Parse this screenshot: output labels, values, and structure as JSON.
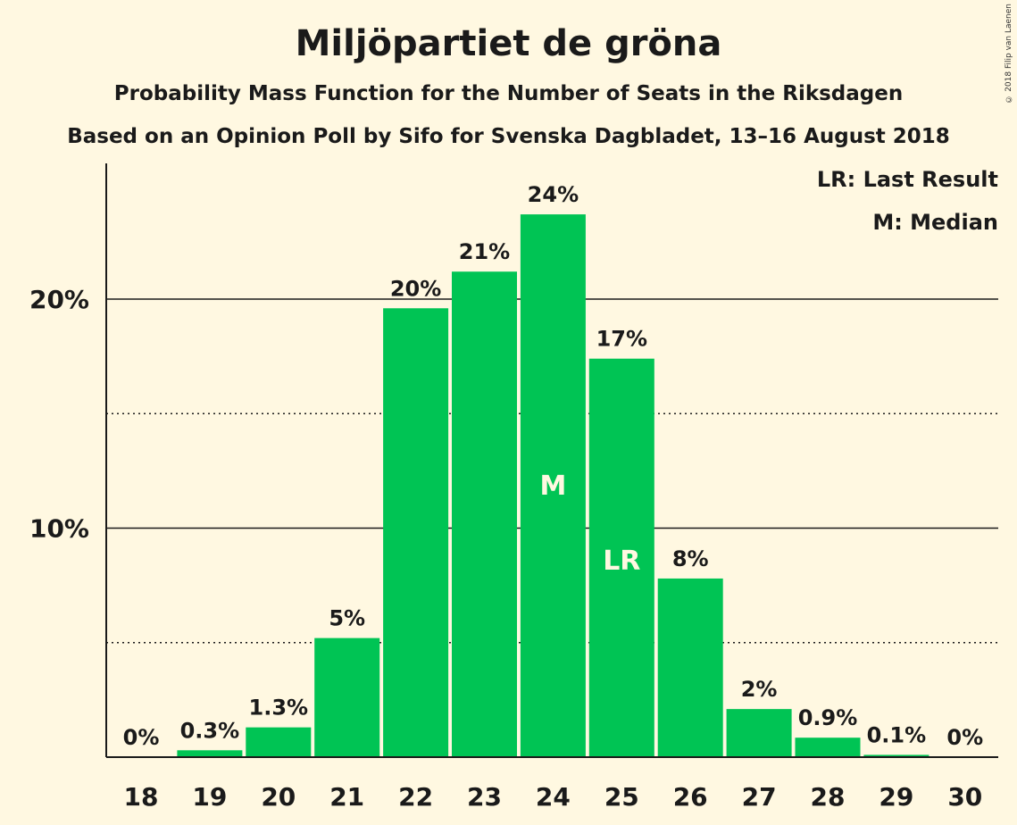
{
  "header": {
    "title": "Miljöpartiet de gröna",
    "subtitle": "Probability Mass Function for the Number of Seats in the Riksdagen",
    "subtitle2": "Based on an Opinion Poll by Sifo for Svenska Dagbladet, 13–16 August 2018",
    "copyright": "© 2018 Filip van Laenen"
  },
  "legend": {
    "last_result": "LR: Last Result",
    "median": "M: Median"
  },
  "colors": {
    "bar": "#00c454",
    "background": "#fff8e1"
  },
  "chart_data": {
    "type": "bar",
    "categories": [
      "18",
      "19",
      "20",
      "21",
      "22",
      "23",
      "24",
      "25",
      "26",
      "27",
      "28",
      "29",
      "30"
    ],
    "values": [
      0,
      0.3,
      1.3,
      5.2,
      19.6,
      21.2,
      23.7,
      17.4,
      7.8,
      2.1,
      0.85,
      0.1,
      0
    ],
    "data_labels": [
      "0%",
      "0.3%",
      "1.3%",
      "5%",
      "20%",
      "21%",
      "24%",
      "17%",
      "8%",
      "2%",
      "0.9%",
      "0.1%",
      "0%"
    ],
    "y_ticks": [
      {
        "value": 10,
        "label": "10%"
      },
      {
        "value": 20,
        "label": "20%"
      }
    ],
    "minor_gridlines": [
      5,
      15
    ],
    "ylim": [
      0,
      26
    ],
    "markers": [
      {
        "category": "24",
        "label": "M"
      },
      {
        "category": "25",
        "label": "LR"
      }
    ],
    "legend_position": "top-right",
    "grid": true
  }
}
